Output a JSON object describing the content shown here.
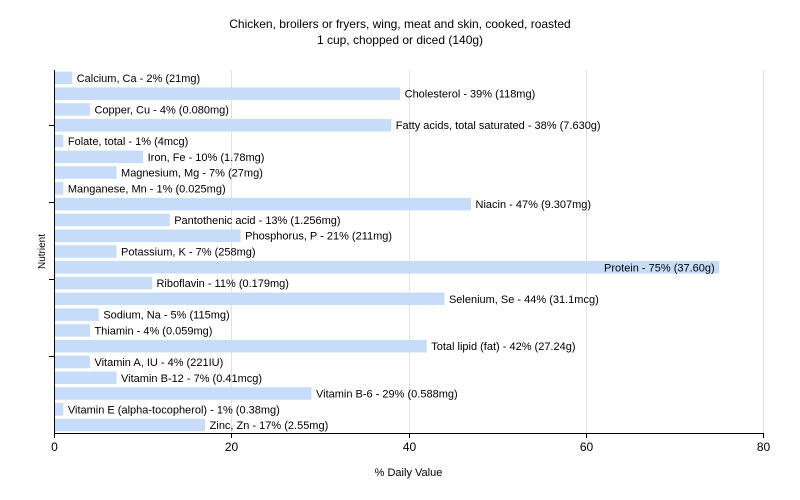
{
  "chart_data": {
    "type": "bar",
    "orientation": "horizontal",
    "title": "Chicken, broilers or fryers, wing, meat and skin, cooked, roasted",
    "subtitle": "1 cup, chopped or diced (140g)",
    "xlabel": "% Daily Value",
    "ylabel": "Nutrient",
    "xlim": [
      0,
      80
    ],
    "xticks": [
      "0",
      "20",
      "40",
      "60",
      "80"
    ],
    "grid": true,
    "bar_color": "#c6dcf9",
    "bars": [
      {
        "label": "Calcium, Ca - 2% (21mg)",
        "value": 2
      },
      {
        "label": "Cholesterol - 39% (118mg)",
        "value": 39
      },
      {
        "label": "Copper, Cu - 4% (0.080mg)",
        "value": 4
      },
      {
        "label": "Fatty acids, total saturated - 38% (7.630g)",
        "value": 38
      },
      {
        "label": "Folate, total - 1% (4mcg)",
        "value": 1
      },
      {
        "label": "Iron, Fe - 10% (1.78mg)",
        "value": 10
      },
      {
        "label": "Magnesium, Mg - 7% (27mg)",
        "value": 7
      },
      {
        "label": "Manganese, Mn - 1% (0.025mg)",
        "value": 1
      },
      {
        "label": "Niacin - 47% (9.307mg)",
        "value": 47
      },
      {
        "label": "Pantothenic acid - 13% (1.256mg)",
        "value": 13
      },
      {
        "label": "Phosphorus, P - 21% (211mg)",
        "value": 21
      },
      {
        "label": "Potassium, K - 7% (258mg)",
        "value": 7
      },
      {
        "label": "Protein - 75% (37.60g)",
        "value": 75
      },
      {
        "label": "Riboflavin - 11% (0.179mg)",
        "value": 11
      },
      {
        "label": "Selenium, Se - 44% (31.1mcg)",
        "value": 44
      },
      {
        "label": "Sodium, Na - 5% (115mg)",
        "value": 5
      },
      {
        "label": "Thiamin - 4% (0.059mg)",
        "value": 4
      },
      {
        "label": "Total lipid (fat) - 42% (27.24g)",
        "value": 42
      },
      {
        "label": "Vitamin A, IU - 4% (221IU)",
        "value": 4
      },
      {
        "label": "Vitamin B-12 - 7% (0.41mcg)",
        "value": 7
      },
      {
        "label": "Vitamin B-6 - 29% (0.588mg)",
        "value": 29
      },
      {
        "label": "Vitamin E (alpha-tocopherol) - 1% (0.38mg)",
        "value": 1
      },
      {
        "label": "Zinc, Zn - 17% (2.55mg)",
        "value": 17
      }
    ]
  }
}
